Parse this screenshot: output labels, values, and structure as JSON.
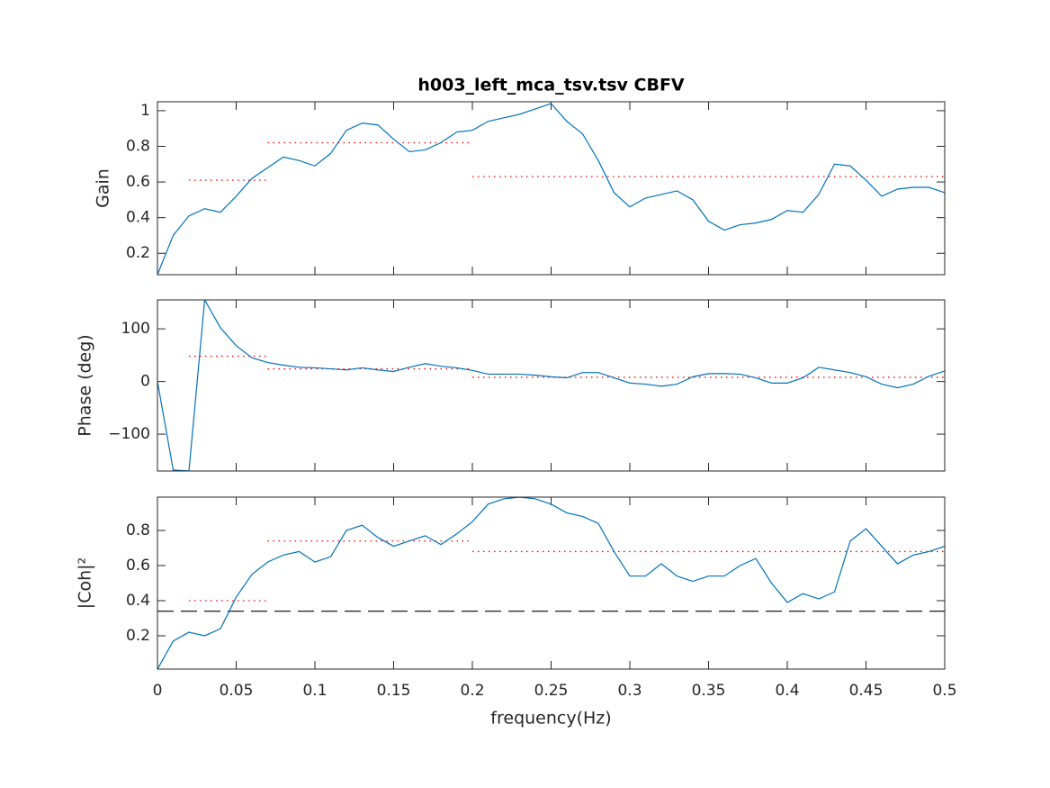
{
  "chart_data": [
    {
      "type": "line",
      "title": "h003_left_mca_tsv.tsv CBFV",
      "ylabel": "Gain",
      "x": [
        0,
        0.01,
        0.02,
        0.03,
        0.04,
        0.05,
        0.06,
        0.07,
        0.08,
        0.09,
        0.1,
        0.11,
        0.12,
        0.13,
        0.14,
        0.15,
        0.16,
        0.17,
        0.18,
        0.19,
        0.2,
        0.21,
        0.22,
        0.23,
        0.24,
        0.25,
        0.26,
        0.27,
        0.28,
        0.29,
        0.3,
        0.31,
        0.32,
        0.33,
        0.34,
        0.35,
        0.36,
        0.37,
        0.38,
        0.39,
        0.4,
        0.41,
        0.42,
        0.43,
        0.44,
        0.45,
        0.46,
        0.47,
        0.48,
        0.49,
        0.5
      ],
      "series": [
        {
          "color": "#0072bd",
          "values": [
            0.08,
            0.3,
            0.41,
            0.45,
            0.43,
            0.52,
            0.62,
            0.68,
            0.74,
            0.72,
            0.69,
            0.76,
            0.89,
            0.93,
            0.92,
            0.84,
            0.77,
            0.78,
            0.82,
            0.88,
            0.89,
            0.94,
            0.96,
            0.98,
            1.01,
            1.04,
            0.94,
            0.87,
            0.72,
            0.54,
            0.46,
            0.51,
            0.53,
            0.55,
            0.5,
            0.38,
            0.33,
            0.36,
            0.37,
            0.39,
            0.44,
            0.43,
            0.53,
            0.7,
            0.69,
            0.61,
            0.52,
            0.56,
            0.57,
            0.57,
            0.54
          ]
        }
      ],
      "bands": [
        {
          "x": [
            0.02,
            0.07
          ],
          "value": 0.61
        },
        {
          "x": [
            0.07,
            0.2
          ],
          "value": 0.82
        },
        {
          "x": [
            0.2,
            0.5
          ],
          "value": 0.63
        }
      ],
      "band_color": "#ff0000",
      "xlim": [
        0,
        0.5
      ],
      "xticks": [
        0,
        0.05,
        0.1,
        0.15,
        0.2,
        0.25,
        0.3,
        0.35,
        0.4,
        0.45,
        0.5
      ],
      "ylim": [
        0.08,
        1.05
      ],
      "yticks": [
        0.2,
        0.4,
        0.6,
        0.8,
        1
      ]
    },
    {
      "type": "line",
      "ylabel": "Phase (deg)",
      "x": [
        0,
        0.01,
        0.02,
        0.03,
        0.04,
        0.05,
        0.06,
        0.07,
        0.08,
        0.09,
        0.1,
        0.11,
        0.12,
        0.13,
        0.14,
        0.15,
        0.16,
        0.17,
        0.18,
        0.19,
        0.2,
        0.21,
        0.22,
        0.23,
        0.24,
        0.25,
        0.26,
        0.27,
        0.28,
        0.29,
        0.3,
        0.31,
        0.32,
        0.33,
        0.34,
        0.35,
        0.36,
        0.37,
        0.38,
        0.39,
        0.4,
        0.41,
        0.42,
        0.43,
        0.44,
        0.45,
        0.46,
        0.47,
        0.48,
        0.49,
        0.5
      ],
      "series": [
        {
          "color": "#0072bd",
          "values": [
            0,
            -168,
            -170,
            155,
            102,
            68,
            45,
            36,
            31,
            27,
            26,
            24,
            22,
            26,
            22,
            19,
            27,
            34,
            29,
            26,
            21,
            14,
            14,
            14,
            12,
            9,
            7,
            17,
            17,
            7,
            -3,
            -5,
            -9,
            -5,
            9,
            15,
            15,
            14,
            7,
            -3,
            -3,
            7,
            27,
            22,
            17,
            9,
            -5,
            -12,
            -5,
            10,
            20
          ]
        }
      ],
      "bands": [
        {
          "x": [
            0.02,
            0.07
          ],
          "value": 48
        },
        {
          "x": [
            0.07,
            0.2
          ],
          "value": 24
        },
        {
          "x": [
            0.2,
            0.5
          ],
          "value": 8
        }
      ],
      "band_color": "#ff0000",
      "xlim": [
        0,
        0.5
      ],
      "xticks": [
        0,
        0.05,
        0.1,
        0.15,
        0.2,
        0.25,
        0.3,
        0.35,
        0.4,
        0.45,
        0.5
      ],
      "ylim": [
        -170,
        155
      ],
      "yticks": [
        {
          "value": -100,
          "label": "−100"
        },
        0,
        100
      ]
    },
    {
      "type": "line",
      "ylabel": "|Coh|²",
      "xlabel": "frequency(Hz)",
      "x": [
        0,
        0.01,
        0.02,
        0.03,
        0.04,
        0.05,
        0.06,
        0.07,
        0.08,
        0.09,
        0.1,
        0.11,
        0.12,
        0.13,
        0.14,
        0.15,
        0.16,
        0.17,
        0.18,
        0.19,
        0.2,
        0.21,
        0.22,
        0.23,
        0.24,
        0.25,
        0.26,
        0.27,
        0.28,
        0.29,
        0.3,
        0.31,
        0.32,
        0.33,
        0.34,
        0.35,
        0.36,
        0.37,
        0.38,
        0.39,
        0.4,
        0.41,
        0.42,
        0.43,
        0.44,
        0.45,
        0.46,
        0.47,
        0.48,
        0.49,
        0.5
      ],
      "series": [
        {
          "color": "#0072bd",
          "values": [
            0.01,
            0.17,
            0.22,
            0.2,
            0.24,
            0.42,
            0.55,
            0.62,
            0.66,
            0.68,
            0.62,
            0.65,
            0.8,
            0.83,
            0.76,
            0.71,
            0.74,
            0.77,
            0.72,
            0.78,
            0.85,
            0.95,
            0.98,
            0.99,
            0.98,
            0.95,
            0.9,
            0.88,
            0.84,
            0.68,
            0.54,
            0.54,
            0.61,
            0.54,
            0.51,
            0.54,
            0.54,
            0.6,
            0.64,
            0.5,
            0.39,
            0.44,
            0.41,
            0.45,
            0.74,
            0.81,
            0.71,
            0.61,
            0.66,
            0.68,
            0.71
          ]
        }
      ],
      "bands": [
        {
          "x": [
            0.02,
            0.07
          ],
          "value": 0.4
        },
        {
          "x": [
            0.07,
            0.2
          ],
          "value": 0.74
        },
        {
          "x": [
            0.2,
            0.5
          ],
          "value": 0.68
        }
      ],
      "band_color": "#ff0000",
      "threshold": 0.34,
      "threshold_color": "#000000",
      "xlim": [
        0,
        0.5
      ],
      "xticks": [
        0,
        0.05,
        0.1,
        0.15,
        0.2,
        0.25,
        0.3,
        0.35,
        0.4,
        0.45,
        0.5
      ],
      "ylim": [
        0.01,
        0.99
      ],
      "yticks": [
        0.2,
        0.4,
        0.6,
        0.8
      ]
    }
  ]
}
